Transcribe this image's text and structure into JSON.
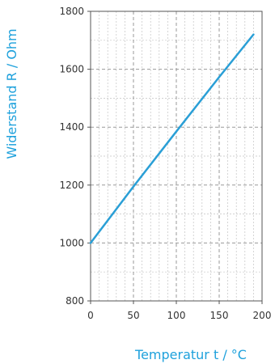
{
  "chart_data": {
    "type": "line",
    "xlabel": "Temperatur t / °C",
    "ylabel": "Widerstand R / Ohm",
    "xlim": [
      0,
      200
    ],
    "ylim": [
      800,
      1800
    ],
    "x_ticks": [
      0,
      50,
      100,
      150,
      200
    ],
    "y_ticks": [
      800,
      1000,
      1200,
      1400,
      1600,
      1800
    ],
    "x_tick_labels": [
      "0",
      "50",
      "100",
      "150",
      "200"
    ],
    "y_tick_labels": [
      "800",
      "1000",
      "1200",
      "1400",
      "1600",
      "1800"
    ],
    "grid": true,
    "series": [
      {
        "x": [
          0,
          50,
          100,
          150,
          190
        ],
        "y": [
          1000,
          1195,
          1385,
          1573,
          1720
        ]
      }
    ],
    "colors": {
      "line": "#2a9fd6",
      "axis_title": "#1ea1dc",
      "grid": "#9a9a9a",
      "frame": "#555555"
    }
  }
}
